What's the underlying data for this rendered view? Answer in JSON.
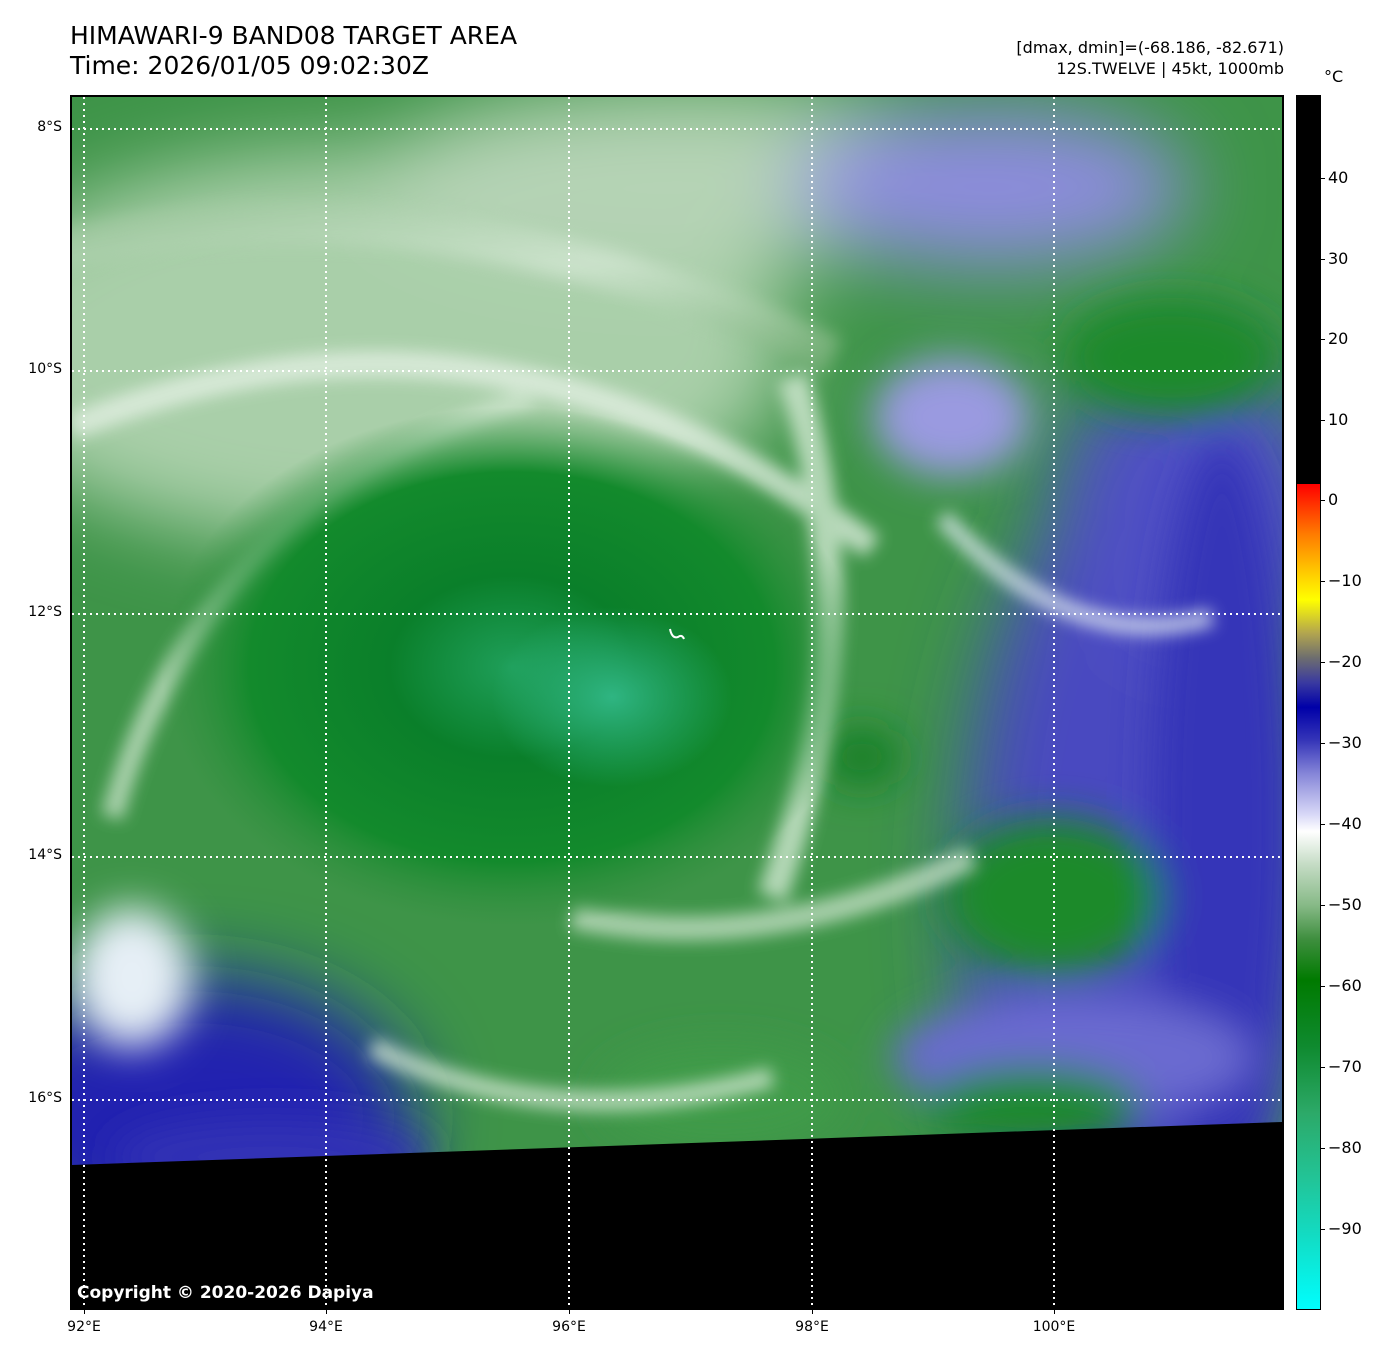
{
  "title": {
    "line1": "HIMAWARI-9 BAND08 TARGET AREA",
    "line2": "Time: 2026/01/05 09:02:30Z"
  },
  "info": {
    "range": "[dmax, dmin]=(-68.186, -82.671)",
    "storm": "12S.TWELVE | 45kt, 1000mb"
  },
  "map": {
    "copyright": "Copyright © 2020-2026 Dapiya",
    "lat_labels": [
      "8°S",
      "10°S",
      "12°S",
      "14°S",
      "16°S"
    ],
    "lon_labels": [
      "92°E",
      "94°E",
      "96°E",
      "98°E",
      "100°E"
    ],
    "gridlines": "dotted white",
    "no_data_color": "#000000"
  },
  "colorbar": {
    "unit": "°C",
    "ticks": [
      "40",
      "30",
      "20",
      "10",
      "0",
      "−10",
      "−20",
      "−30",
      "−40",
      "−50",
      "−60",
      "−70",
      "−80",
      "−90"
    ],
    "colors": {
      "warm_black": "#000000",
      "red": "#ff0000",
      "yellow": "#ffff00",
      "blue": "#0000a8",
      "white": "#ffffff",
      "green": "#007a00",
      "cyan": "#00ffff"
    }
  }
}
